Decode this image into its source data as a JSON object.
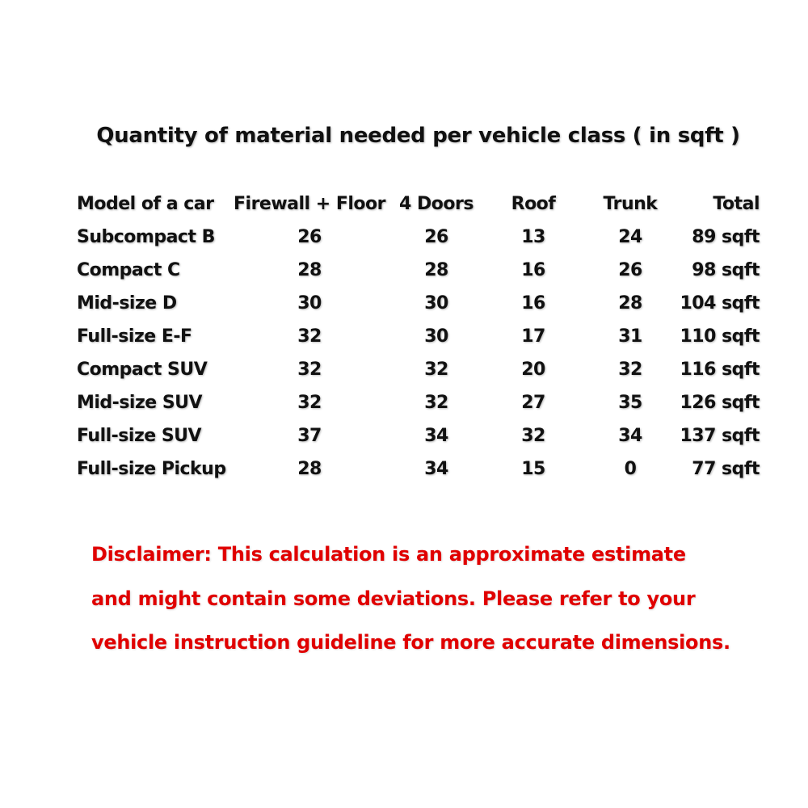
{
  "title": "Quantity of material needed per vehicle class ( in sqft )",
  "table": {
    "headers": [
      "Model of a car",
      "Firewall + Floor",
      "4 Doors",
      "Roof",
      "Trunk",
      "Total"
    ],
    "rows": [
      [
        "Subcompact B",
        "26",
        "26",
        "13",
        "24",
        "89 sqft"
      ],
      [
        "Compact C",
        "28",
        "28",
        "16",
        "26",
        "98 sqft"
      ],
      [
        "Mid-size D",
        "30",
        "30",
        "16",
        "28",
        "104 sqft"
      ],
      [
        "Full-size E-F",
        "32",
        "30",
        "17",
        "31",
        "110 sqft"
      ],
      [
        "Compact SUV",
        "32",
        "32",
        "20",
        "32",
        "116 sqft"
      ],
      [
        "Mid-size SUV",
        "32",
        "32",
        "27",
        "35",
        "126 sqft"
      ],
      [
        "Full-size SUV",
        "37",
        "34",
        "32",
        "34",
        "137 sqft"
      ],
      [
        "Full-size Pickup",
        "28",
        "34",
        "15",
        "0",
        "77 sqft"
      ]
    ]
  },
  "disclaimer": {
    "lines": [
      "Disclaimer: This calculation is an approximate estimate",
      "and might contain some deviations. Please refer to your",
      "vehicle instruction guideline for more accurate dimensions."
    ],
    "color": "#e00000"
  }
}
